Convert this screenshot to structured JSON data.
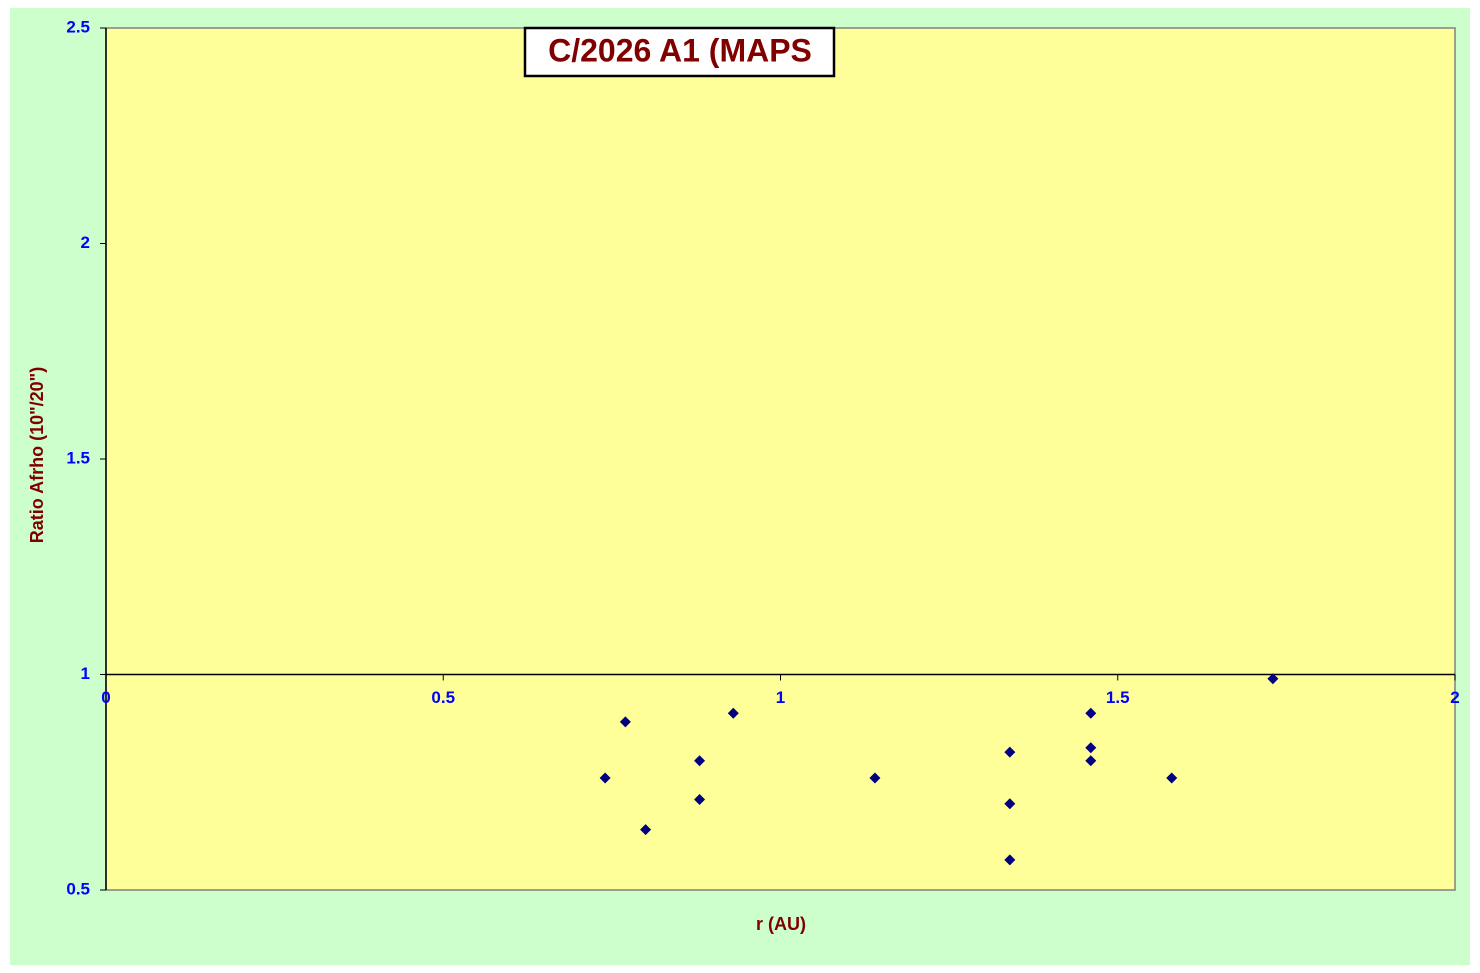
{
  "chart_data": {
    "type": "scatter",
    "title": "C/2026 A1 (MAPS",
    "x_label": "r (AU)",
    "y_label": "Ratio Afrho (10\"/20\")",
    "series": [
      {
        "color": "#000080",
        "x": [
          0.74,
          0.77,
          0.8,
          0.88,
          0.88,
          0.93,
          1.14,
          1.34,
          1.34,
          1.34,
          1.46,
          1.46,
          1.46,
          1.58,
          1.73
        ],
        "values": [
          0.76,
          0.89,
          0.64,
          0.8,
          0.71,
          0.91,
          0.76,
          0.82,
          0.7,
          0.57,
          0.91,
          0.83,
          0.8,
          0.76,
          0.99
        ]
      }
    ],
    "xlim": [
      0,
      2
    ],
    "xticks": [
      0,
      0.5,
      1,
      1.5,
      2
    ],
    "ylim": [
      0.5,
      2.5
    ],
    "yticks": [
      0.5,
      1,
      1.5,
      2,
      2.5
    ],
    "x_axis_crosses": 1,
    "grid": false
  }
}
